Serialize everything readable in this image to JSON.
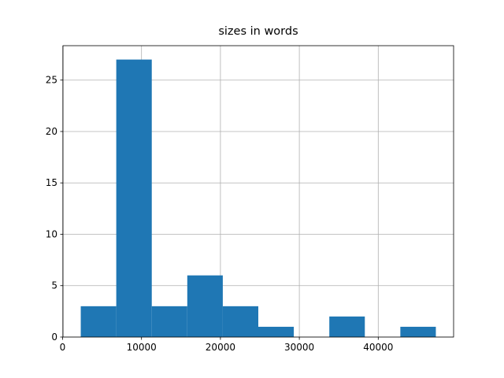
{
  "chart_data": {
    "type": "histogram",
    "title": "sizes in words",
    "bins": [
      2300,
      6800,
      11300,
      15800,
      20300,
      24800,
      29300,
      33800,
      38300,
      42800,
      47300
    ],
    "values": [
      3,
      27,
      3,
      6,
      3,
      1,
      0,
      2,
      0,
      1
    ],
    "color": "#1f77b4",
    "xlim": [
      50,
      49550
    ],
    "xticks": [
      0,
      10000,
      20000,
      30000,
      40000
    ],
    "ylim": [
      0,
      28.35
    ],
    "yticks": [
      0,
      5,
      10,
      15,
      20,
      25
    ],
    "grid": true
  }
}
